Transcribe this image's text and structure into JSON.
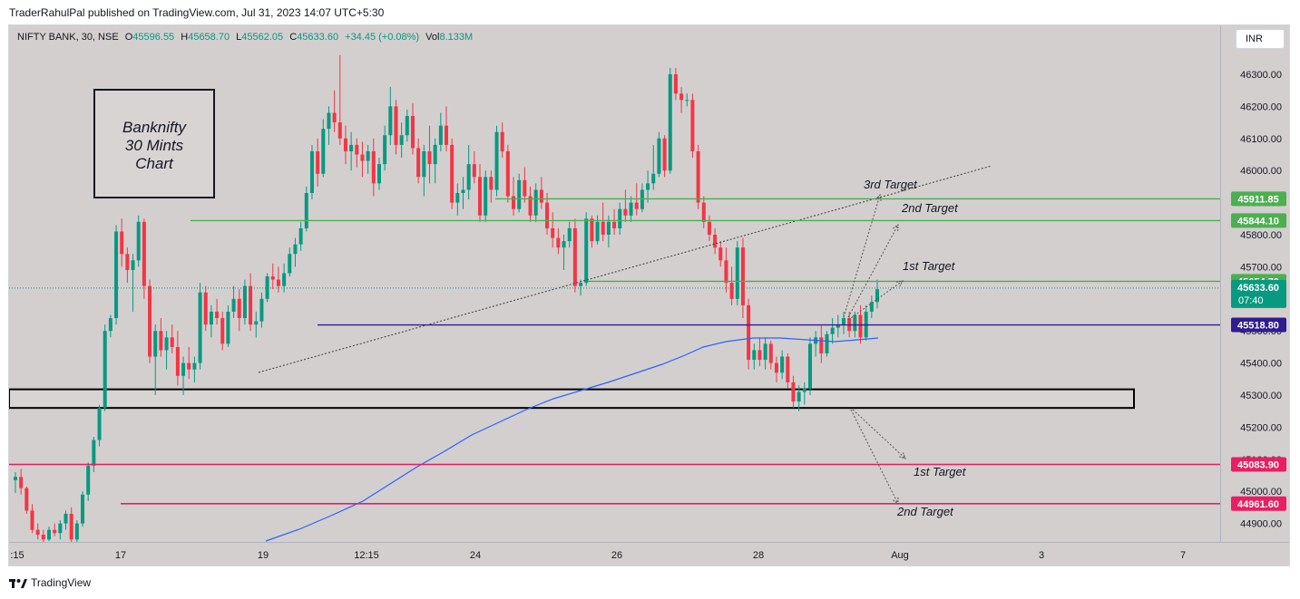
{
  "header": {
    "published": "TraderRahulPal published on TradingView.com, Jul 31, 2023 14:07 UTC+5:30"
  },
  "legend": {
    "symbol": "NIFTY BANK, 30, NSE",
    "o_key": "O",
    "o": "45596.55",
    "h_key": "H",
    "h": "45658.70",
    "l_key": "L",
    "l": "45562.05",
    "c_key": "C",
    "c": "45633.60",
    "change": "+34.45 (+0.08%)",
    "vol_key": "Vol",
    "vol": "8.133M"
  },
  "currency_button": "INR",
  "footer": {
    "brand": "TradingView"
  },
  "colors": {
    "up": "#089981",
    "down": "#f23645",
    "bg": "#d3cfcf",
    "green_level": "#4caf50",
    "red_level": "#e91e63",
    "purple_level": "#311b92",
    "ma": "#2962ff"
  },
  "chart_data": {
    "type": "candlestick",
    "symbol": "NIFTY BANK",
    "timeframe": "30",
    "annotation_box": [
      "Banknifty",
      "30 Mints",
      "Chart"
    ],
    "y_ticks": [
      44900,
      45000,
      45100,
      45200,
      45300,
      45400,
      45500,
      45600,
      45700,
      45800,
      45900,
      46000,
      46100,
      46200,
      46300
    ],
    "y_tick_labels": [
      "44900.00",
      "45000.00",
      "45100.00",
      "45200.00",
      "45300.00",
      "45400.00",
      "45500.00",
      "45600.00",
      "45700.00",
      "45800.00",
      "45900.00",
      "46000.00",
      "46100.00",
      "46200.00",
      "46300.00"
    ],
    "ylim": [
      44840,
      46400
    ],
    "x_ticks": [
      ":15",
      "17",
      "19",
      "12:15",
      "24",
      "26",
      "28",
      "Aug",
      "3",
      "7"
    ],
    "levels": [
      {
        "value": 45911.85,
        "label": "45911.85",
        "kind": "resistance"
      },
      {
        "value": 45844.1,
        "label": "45844.10",
        "kind": "resistance"
      },
      {
        "value": 45654.7,
        "label": "45654.70",
        "kind": "resistance"
      },
      {
        "value": 45518.8,
        "label": "45518.80",
        "kind": "pivot"
      },
      {
        "value": 45083.9,
        "label": "45083.90",
        "kind": "support"
      },
      {
        "value": 44961.6,
        "label": "44961.60",
        "kind": "support"
      }
    ],
    "last_price": {
      "value": 45633.6,
      "label": "45633.60",
      "countdown": "07:40"
    },
    "targets_up": [
      "3rd Target",
      "2nd Target",
      "1st Target"
    ],
    "targets_down": [
      "1st Target",
      "2nd Target"
    ],
    "candles": [
      [
        45035,
        45060,
        44995,
        45045
      ],
      [
        45045,
        45070,
        44990,
        45010
      ],
      [
        45010,
        45015,
        44930,
        44940
      ],
      [
        44940,
        44960,
        44870,
        44880
      ],
      [
        44880,
        44900,
        44850,
        44865
      ],
      [
        44865,
        44880,
        44840,
        44850
      ],
      [
        44850,
        44890,
        44845,
        44880
      ],
      [
        44880,
        44900,
        44860,
        44870
      ],
      [
        44870,
        44910,
        44850,
        44900
      ],
      [
        44900,
        44940,
        44880,
        44930
      ],
      [
        44930,
        44950,
        44840,
        44850
      ],
      [
        44850,
        44910,
        44840,
        44900
      ],
      [
        44900,
        45000,
        44890,
        44990
      ],
      [
        44990,
        45090,
        44970,
        45080
      ],
      [
        45080,
        45170,
        45060,
        45160
      ],
      [
        45160,
        45270,
        45140,
        45260
      ],
      [
        45260,
        45520,
        45250,
        45500
      ],
      [
        45500,
        45550,
        45480,
        45540
      ],
      [
        45540,
        45830,
        45520,
        45810
      ],
      [
        45810,
        45850,
        45700,
        45740
      ],
      [
        45740,
        45760,
        45650,
        45690
      ],
      [
        45690,
        45740,
        45560,
        45720
      ],
      [
        45720,
        45860,
        45700,
        45840
      ],
      [
        45840,
        45850,
        45600,
        45640
      ],
      [
        45640,
        45660,
        45400,
        45420
      ],
      [
        45420,
        45520,
        45300,
        45500
      ],
      [
        45500,
        45540,
        45420,
        45440
      ],
      [
        45440,
        45500,
        45380,
        45480
      ],
      [
        45480,
        45520,
        45430,
        45450
      ],
      [
        45450,
        45500,
        45330,
        45360
      ],
      [
        45360,
        45420,
        45300,
        45400
      ],
      [
        45400,
        45450,
        45350,
        45380
      ],
      [
        45380,
        45420,
        45340,
        45400
      ],
      [
        45400,
        45650,
        45380,
        45620
      ],
      [
        45620,
        45640,
        45500,
        45520
      ],
      [
        45520,
        45580,
        45480,
        45560
      ],
      [
        45560,
        45600,
        45520,
        45540
      ],
      [
        45540,
        45560,
        45440,
        45460
      ],
      [
        45460,
        45580,
        45450,
        45560
      ],
      [
        45560,
        45640,
        45540,
        45600
      ],
      [
        45600,
        45630,
        45500,
        45540
      ],
      [
        45540,
        45660,
        45520,
        45640
      ],
      [
        45640,
        45680,
        45500,
        45520
      ],
      [
        45520,
        45560,
        45480,
        45530
      ],
      [
        45530,
        45620,
        45510,
        45600
      ],
      [
        45600,
        45680,
        45590,
        45670
      ],
      [
        45670,
        45710,
        45630,
        45660
      ],
      [
        45660,
        45700,
        45620,
        45640
      ],
      [
        45640,
        45710,
        45620,
        45680
      ],
      [
        45680,
        45760,
        45670,
        45740
      ],
      [
        45740,
        45790,
        45700,
        45770
      ],
      [
        45770,
        45840,
        45750,
        45820
      ],
      [
        45820,
        45950,
        45810,
        45930
      ],
      [
        45930,
        46080,
        45910,
        46060
      ],
      [
        46060,
        46100,
        45950,
        45990
      ],
      [
        45990,
        46160,
        45980,
        46130
      ],
      [
        46130,
        46200,
        46080,
        46180
      ],
      [
        46180,
        46250,
        46120,
        46150
      ],
      [
        46150,
        46360,
        46080,
        46100
      ],
      [
        46100,
        46140,
        46020,
        46060
      ],
      [
        46060,
        46120,
        46000,
        46080
      ],
      [
        46080,
        46100,
        46010,
        46050
      ],
      [
        46050,
        46090,
        45980,
        46030
      ],
      [
        46030,
        46080,
        45990,
        46060
      ],
      [
        46060,
        46100,
        45920,
        45960
      ],
      [
        45960,
        46040,
        45940,
        46020
      ],
      [
        46020,
        46140,
        46000,
        46110
      ],
      [
        46110,
        46260,
        46080,
        46200
      ],
      [
        46200,
        46220,
        46050,
        46080
      ],
      [
        46080,
        46150,
        46040,
        46110
      ],
      [
        46110,
        46190,
        46090,
        46170
      ],
      [
        46170,
        46210,
        46050,
        46070
      ],
      [
        46070,
        46100,
        45960,
        45980
      ],
      [
        45980,
        46080,
        45920,
        46060
      ],
      [
        46060,
        46140,
        45960,
        46020
      ],
      [
        46020,
        46100,
        45960,
        46080
      ],
      [
        46080,
        46180,
        46060,
        46140
      ],
      [
        46140,
        46200,
        46060,
        46080
      ],
      [
        46080,
        46100,
        45880,
        45900
      ],
      [
        45900,
        45960,
        45860,
        45930
      ],
      [
        45930,
        45980,
        45880,
        45940
      ],
      [
        45940,
        46080,
        45910,
        46020
      ],
      [
        46020,
        46060,
        45960,
        45980
      ],
      [
        45980,
        46020,
        45840,
        45860
      ],
      [
        45860,
        46000,
        45840,
        45980
      ],
      [
        45980,
        46000,
        45900,
        45940
      ],
      [
        45940,
        46140,
        45920,
        46120
      ],
      [
        46120,
        46150,
        46040,
        46060
      ],
      [
        46060,
        46080,
        45900,
        45920
      ],
      [
        45920,
        45980,
        45860,
        45880
      ],
      [
        45880,
        45990,
        45870,
        45970
      ],
      [
        45970,
        46010,
        45900,
        45920
      ],
      [
        45920,
        45950,
        45840,
        45860
      ],
      [
        45860,
        45960,
        45840,
        45940
      ],
      [
        45940,
        45980,
        45880,
        45900
      ],
      [
        45900,
        45930,
        45800,
        45820
      ],
      [
        45820,
        45870,
        45760,
        45790
      ],
      [
        45790,
        45820,
        45740,
        45760
      ],
      [
        45760,
        45800,
        45690,
        45780
      ],
      [
        45780,
        45840,
        45760,
        45820
      ],
      [
        45820,
        45850,
        45620,
        45640
      ],
      [
        45640,
        45660,
        45610,
        45650
      ],
      [
        45650,
        45870,
        45640,
        45850
      ],
      [
        45850,
        45860,
        45760,
        45780
      ],
      [
        45780,
        45860,
        45770,
        45840
      ],
      [
        45840,
        45900,
        45780,
        45800
      ],
      [
        45800,
        45860,
        45760,
        45840
      ],
      [
        45840,
        45880,
        45800,
        45820
      ],
      [
        45820,
        45900,
        45800,
        45880
      ],
      [
        45880,
        45940,
        45840,
        45860
      ],
      [
        45860,
        45920,
        45840,
        45900
      ],
      [
        45900,
        45960,
        45860,
        45880
      ],
      [
        45880,
        45960,
        45870,
        45940
      ],
      [
        45940,
        46000,
        45900,
        45960
      ],
      [
        45960,
        46080,
        45940,
        45990
      ],
      [
        45990,
        46120,
        45980,
        46100
      ],
      [
        46100,
        46110,
        45980,
        46000
      ],
      [
        46000,
        46320,
        45990,
        46300
      ],
      [
        46300,
        46320,
        46220,
        46240
      ],
      [
        46240,
        46260,
        46180,
        46220
      ],
      [
        46220,
        46240,
        46200,
        46220
      ],
      [
        46220,
        46240,
        46040,
        46060
      ],
      [
        46060,
        46080,
        45880,
        45900
      ],
      [
        45900,
        45920,
        45820,
        45840
      ],
      [
        45840,
        45860,
        45780,
        45800
      ],
      [
        45800,
        45820,
        45740,
        45760
      ],
      [
        45760,
        45780,
        45700,
        45720
      ],
      [
        45720,
        45760,
        45620,
        45650
      ],
      [
        45650,
        45700,
        45580,
        45600
      ],
      [
        45600,
        45780,
        45580,
        45760
      ],
      [
        45760,
        45790,
        45540,
        45580
      ],
      [
        45580,
        45600,
        45380,
        45410
      ],
      [
        45410,
        45460,
        45380,
        45440
      ],
      [
        45440,
        45480,
        45390,
        45410
      ],
      [
        45410,
        45480,
        45380,
        45460
      ],
      [
        45460,
        45470,
        45380,
        45400
      ],
      [
        45400,
        45420,
        45340,
        45370
      ],
      [
        45370,
        45440,
        45350,
        45420
      ],
      [
        45420,
        45430,
        45320,
        45340
      ],
      [
        45340,
        45360,
        45260,
        45280
      ],
      [
        45280,
        45330,
        45250,
        45310
      ],
      [
        45310,
        45340,
        45270,
        45320
      ],
      [
        45320,
        45480,
        45300,
        45460
      ],
      [
        45460,
        45500,
        45420,
        45480
      ],
      [
        45480,
        45520,
        45400,
        45430
      ],
      [
        45430,
        45500,
        45420,
        45490
      ],
      [
        45490,
        45540,
        45460,
        45510
      ],
      [
        45510,
        45550,
        45480,
        45520
      ],
      [
        45520,
        45560,
        45490,
        45540
      ],
      [
        45540,
        45560,
        45480,
        45500
      ],
      [
        45500,
        45560,
        45480,
        45550
      ],
      [
        45550,
        45580,
        45460,
        45480
      ],
      [
        45480,
        45580,
        45470,
        45560
      ],
      [
        45560,
        45610,
        45540,
        45590
      ],
      [
        45590,
        45660,
        45570,
        45630
      ]
    ]
  }
}
